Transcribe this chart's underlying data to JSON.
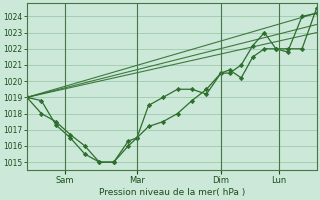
{
  "background_color": "#cce8d8",
  "grid_color": "#88bb99",
  "line_color": "#2d6e2d",
  "ylim": [
    1014.5,
    1024.8
  ],
  "yticks": [
    1015,
    1016,
    1017,
    1018,
    1019,
    1020,
    1021,
    1022,
    1023,
    1024
  ],
  "xlabel": "Pression niveau de la mer( hPa )",
  "xtick_labels": [
    "Sam",
    "Mar",
    "Dim",
    "Lun"
  ],
  "xtick_positions": [
    0.13,
    0.38,
    0.67,
    0.87
  ],
  "xlim": [
    0.0,
    1.0
  ],
  "trend1_x": [
    0.0,
    1.0
  ],
  "trend1_y": [
    1019.0,
    1024.2
  ],
  "trend2_x": [
    0.0,
    1.0
  ],
  "trend2_y": [
    1019.0,
    1023.5
  ],
  "trend3_x": [
    0.0,
    1.0
  ],
  "trend3_y": [
    1019.0,
    1023.0
  ],
  "jagged1_x": [
    0.0,
    0.05,
    0.1,
    0.15,
    0.2,
    0.25,
    0.3,
    0.35,
    0.38,
    0.42,
    0.47,
    0.52,
    0.57,
    0.62,
    0.67,
    0.7,
    0.74,
    0.78,
    0.82,
    0.86,
    0.9,
    0.95,
    1.0
  ],
  "jagged1_y": [
    1019.0,
    1018.0,
    1017.5,
    1016.7,
    1016.0,
    1015.0,
    1015.0,
    1016.3,
    1016.5,
    1018.5,
    1019.0,
    1019.5,
    1019.5,
    1019.2,
    1020.5,
    1020.7,
    1020.2,
    1021.5,
    1022.0,
    1022.0,
    1021.8,
    1024.0,
    1024.2
  ],
  "jagged2_x": [
    0.0,
    0.05,
    0.1,
    0.15,
    0.2,
    0.25,
    0.3,
    0.35,
    0.38,
    0.42,
    0.47,
    0.52,
    0.57,
    0.62,
    0.67,
    0.7,
    0.74,
    0.78,
    0.82,
    0.86,
    0.9,
    0.95,
    1.0
  ],
  "jagged2_y": [
    1019.0,
    1018.8,
    1017.3,
    1016.5,
    1015.5,
    1015.0,
    1015.0,
    1016.0,
    1016.5,
    1017.2,
    1017.5,
    1018.0,
    1018.8,
    1019.5,
    1020.5,
    1020.5,
    1021.0,
    1022.2,
    1023.0,
    1022.0,
    1022.0,
    1022.0,
    1024.5
  ]
}
